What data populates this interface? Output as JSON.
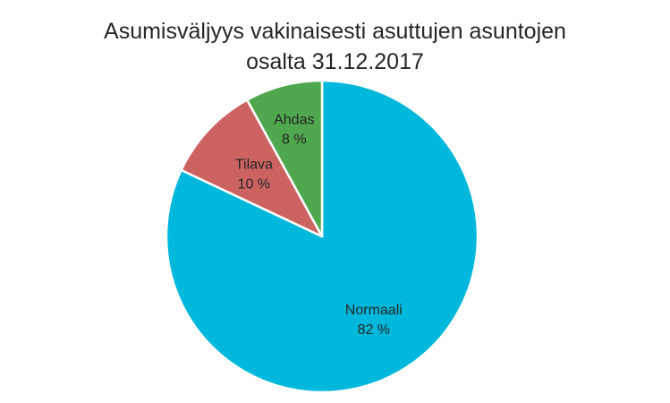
{
  "chart_data": {
    "type": "pie",
    "title_line1": "Asumisväljyys vakinaisesti asuttujen asuntojen",
    "title_line2": "osalta 31.12.2017",
    "slices": [
      {
        "name": "Normaali",
        "value": 82,
        "label": "82 %",
        "color": "#00B8DC"
      },
      {
        "name": "Tilava",
        "value": 10,
        "label": "10 %",
        "color": "#CD6361"
      },
      {
        "name": "Ahdas",
        "value": 8,
        "label": "8 %",
        "color": "#4FA84D"
      }
    ],
    "start": "12 o'clock",
    "direction": "clockwise"
  }
}
